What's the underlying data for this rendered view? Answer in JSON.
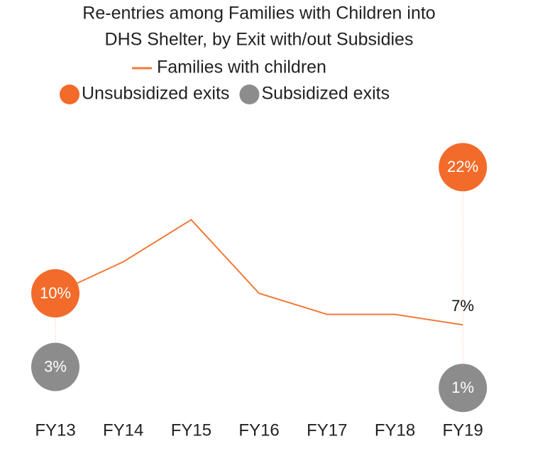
{
  "chart_data": {
    "type": "line",
    "title": [
      "Re-entries among Families with Children into",
      "DHS Shelter, by Exit with/out Subsidies"
    ],
    "categories": [
      "FY13",
      "FY14",
      "FY15",
      "FY16",
      "FY17",
      "FY18",
      "FY19"
    ],
    "ylim": [
      0,
      25
    ],
    "series": [
      {
        "name": "Families with children",
        "type": "line",
        "color": "#f07a3a",
        "values": [
          10,
          13,
          17,
          10,
          8,
          8,
          7
        ],
        "value_labels": [
          null,
          null,
          null,
          null,
          null,
          null,
          "7%"
        ]
      },
      {
        "name": "Unsubsidized exits",
        "type": "dot",
        "color": "#f26b2a",
        "values": [
          10,
          null,
          null,
          null,
          null,
          null,
          22
        ],
        "value_labels": [
          "10%",
          null,
          null,
          null,
          null,
          null,
          "22%"
        ]
      },
      {
        "name": "Subsidized exits",
        "type": "dot",
        "color": "#8c8c8c",
        "values": [
          3,
          null,
          null,
          null,
          null,
          null,
          1
        ],
        "value_labels": [
          "3%",
          null,
          null,
          null,
          null,
          null,
          "1%"
        ]
      }
    ]
  }
}
